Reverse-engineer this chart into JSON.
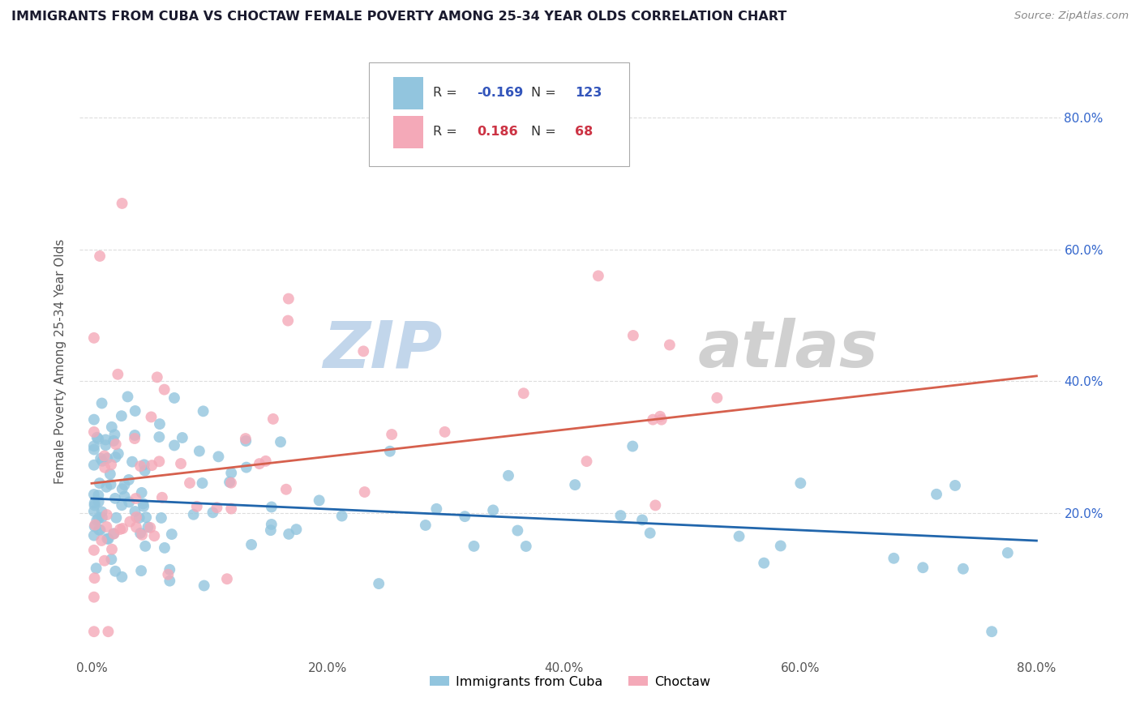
{
  "title": "IMMIGRANTS FROM CUBA VS CHOCTAW FEMALE POVERTY AMONG 25-34 YEAR OLDS CORRELATION CHART",
  "source_text": "Source: ZipAtlas.com",
  "ylabel_text": "Female Poverty Among 25-34 Year Olds",
  "x_tick_labels": [
    "0.0%",
    "",
    "20.0%",
    "",
    "40.0%",
    "",
    "60.0%",
    "",
    "80.0%"
  ],
  "x_tick_vals": [
    0.0,
    0.1,
    0.2,
    0.3,
    0.4,
    0.5,
    0.6,
    0.7,
    0.8
  ],
  "y_tick_vals": [
    0.2,
    0.4,
    0.6,
    0.8
  ],
  "y_tick_labels": [
    "20.0%",
    "40.0%",
    "60.0%",
    "80.0%"
  ],
  "xlim": [
    -0.01,
    0.82
  ],
  "ylim": [
    -0.02,
    0.88
  ],
  "legend_R1": "-0.169",
  "legend_N1": "123",
  "legend_R2": "0.186",
  "legend_N2": "68",
  "color_blue": "#92c5de",
  "color_pink": "#f4a9b8",
  "color_blue_line": "#2166ac",
  "color_pink_line": "#d6604d",
  "watermark_zip": "#c8d8e8",
  "watermark_atlas": "#c8c8c8",
  "background_color": "#ffffff",
  "grid_color": "#dddddd",
  "title_color": "#1a1a2e",
  "source_color": "#888888",
  "right_label_color": "#3366cc",
  "blue_line_x": [
    0.0,
    0.8
  ],
  "blue_line_y": [
    0.222,
    0.158
  ],
  "pink_line_x": [
    0.0,
    0.8
  ],
  "pink_line_y": [
    0.245,
    0.408
  ]
}
